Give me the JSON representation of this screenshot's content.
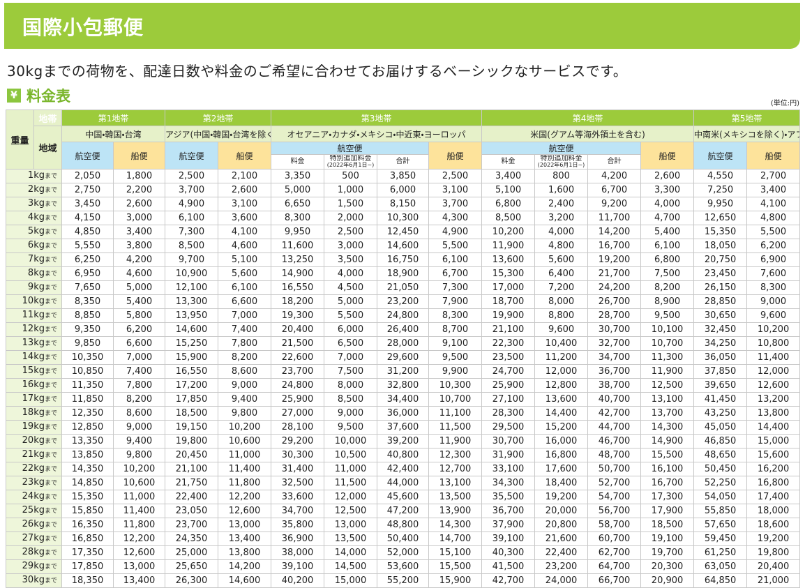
{
  "header": {
    "title": "国際小包郵便"
  },
  "description": "30kgまでの荷物を、配達日数や料金のご希望に合わせてお届けするベーシックなサービスです。",
  "section": {
    "icon": "¥",
    "title": "料金表",
    "unit": "(単位:円)"
  },
  "table": {
    "corner": {
      "weight": "重量",
      "zone": "地帯",
      "region": "地域"
    },
    "zones": [
      {
        "name": "第1地帯",
        "region": "中国・韓国・台湾",
        "air": "航空便",
        "ship": "船便"
      },
      {
        "name": "第2地帯",
        "region": "アジア(中国・韓国・台湾を除く)",
        "air": "航空便",
        "ship": "船便"
      },
      {
        "name": "第3地帯",
        "region": "オセアニア・カナダ・メキシコ・中近東・ヨーロッパ",
        "air": "航空便",
        "fee": "料金",
        "surcharge": "特別追加料金",
        "surcharge_note": "(2022年6月1日~)",
        "total": "合計",
        "ship": "船便"
      },
      {
        "name": "第4地帯",
        "region": "米国(グアム等海外領土を含む)",
        "air": "航空便",
        "fee": "料金",
        "surcharge": "特別追加料金",
        "surcharge_note": "(2022年6月1日~)",
        "total": "合計",
        "ship": "船便"
      },
      {
        "name": "第5地帯",
        "region": "中南米(メキシコを除く)・アフリカ",
        "air": "航空便",
        "ship": "船便"
      }
    ],
    "rows": [
      {
        "weight": "1kg",
        "suffix": "まで",
        "values": [
          "2,050",
          "1,800",
          "2,500",
          "2,100",
          "3,350",
          "500",
          "3,850",
          "2,500",
          "3,400",
          "800",
          "4,200",
          "2,600",
          "4,550",
          "2,700"
        ]
      },
      {
        "weight": "2kg",
        "suffix": "まで",
        "values": [
          "2,750",
          "2,200",
          "3,700",
          "2,600",
          "5,000",
          "1,000",
          "6,000",
          "3,100",
          "5,100",
          "1,600",
          "6,700",
          "3,300",
          "7,250",
          "3,400"
        ]
      },
      {
        "weight": "3kg",
        "suffix": "まで",
        "values": [
          "3,450",
          "2,600",
          "4,900",
          "3,100",
          "6,650",
          "1,500",
          "8,150",
          "3,700",
          "6,800",
          "2,400",
          "9,200",
          "4,000",
          "9,950",
          "4,100"
        ]
      },
      {
        "weight": "4kg",
        "suffix": "まで",
        "values": [
          "4,150",
          "3,000",
          "6,100",
          "3,600",
          "8,300",
          "2,000",
          "10,300",
          "4,300",
          "8,500",
          "3,200",
          "11,700",
          "4,700",
          "12,650",
          "4,800"
        ]
      },
      {
        "weight": "5kg",
        "suffix": "まで",
        "values": [
          "4,850",
          "3,400",
          "7,300",
          "4,100",
          "9,950",
          "2,500",
          "12,450",
          "4,900",
          "10,200",
          "4,000",
          "14,200",
          "5,400",
          "15,350",
          "5,500"
        ]
      },
      {
        "weight": "6kg",
        "suffix": "まで",
        "values": [
          "5,550",
          "3,800",
          "8,500",
          "4,600",
          "11,600",
          "3,000",
          "14,600",
          "5,500",
          "11,900",
          "4,800",
          "16,700",
          "6,100",
          "18,050",
          "6,200"
        ]
      },
      {
        "weight": "7kg",
        "suffix": "まで",
        "values": [
          "6,250",
          "4,200",
          "9,700",
          "5,100",
          "13,250",
          "3,500",
          "16,750",
          "6,100",
          "13,600",
          "5,600",
          "19,200",
          "6,800",
          "20,750",
          "6,900"
        ]
      },
      {
        "weight": "8kg",
        "suffix": "まで",
        "values": [
          "6,950",
          "4,600",
          "10,900",
          "5,600",
          "14,900",
          "4,000",
          "18,900",
          "6,700",
          "15,300",
          "6,400",
          "21,700",
          "7,500",
          "23,450",
          "7,600"
        ]
      },
      {
        "weight": "9kg",
        "suffix": "まで",
        "values": [
          "7,650",
          "5,000",
          "12,100",
          "6,100",
          "16,550",
          "4,500",
          "21,050",
          "7,300",
          "17,000",
          "7,200",
          "24,200",
          "8,200",
          "26,150",
          "8,300"
        ]
      },
      {
        "weight": "10kg",
        "suffix": "まで",
        "values": [
          "8,350",
          "5,400",
          "13,300",
          "6,600",
          "18,200",
          "5,000",
          "23,200",
          "7,900",
          "18,700",
          "8,000",
          "26,700",
          "8,900",
          "28,850",
          "9,000"
        ]
      },
      {
        "weight": "11kg",
        "suffix": "まで",
        "values": [
          "8,850",
          "5,800",
          "13,950",
          "7,000",
          "19,300",
          "5,500",
          "24,800",
          "8,300",
          "19,900",
          "8,800",
          "28,700",
          "9,500",
          "30,650",
          "9,600"
        ]
      },
      {
        "weight": "12kg",
        "suffix": "まで",
        "values": [
          "9,350",
          "6,200",
          "14,600",
          "7,400",
          "20,400",
          "6,000",
          "26,400",
          "8,700",
          "21,100",
          "9,600",
          "30,700",
          "10,100",
          "32,450",
          "10,200"
        ]
      },
      {
        "weight": "13kg",
        "suffix": "まで",
        "values": [
          "9,850",
          "6,600",
          "15,250",
          "7,800",
          "21,500",
          "6,500",
          "28,000",
          "9,100",
          "22,300",
          "10,400",
          "32,700",
          "10,700",
          "34,250",
          "10,800"
        ]
      },
      {
        "weight": "14kg",
        "suffix": "まで",
        "values": [
          "10,350",
          "7,000",
          "15,900",
          "8,200",
          "22,600",
          "7,000",
          "29,600",
          "9,500",
          "23,500",
          "11,200",
          "34,700",
          "11,300",
          "36,050",
          "11,400"
        ]
      },
      {
        "weight": "15kg",
        "suffix": "まで",
        "values": [
          "10,850",
          "7,400",
          "16,550",
          "8,600",
          "23,700",
          "7,500",
          "31,200",
          "9,900",
          "24,700",
          "12,000",
          "36,700",
          "11,900",
          "37,850",
          "12,000"
        ]
      },
      {
        "weight": "16kg",
        "suffix": "まで",
        "values": [
          "11,350",
          "7,800",
          "17,200",
          "9,000",
          "24,800",
          "8,000",
          "32,800",
          "10,300",
          "25,900",
          "12,800",
          "38,700",
          "12,500",
          "39,650",
          "12,600"
        ]
      },
      {
        "weight": "17kg",
        "suffix": "まで",
        "values": [
          "11,850",
          "8,200",
          "17,850",
          "9,400",
          "25,900",
          "8,500",
          "34,400",
          "10,700",
          "27,100",
          "13,600",
          "40,700",
          "13,100",
          "41,450",
          "13,200"
        ]
      },
      {
        "weight": "18kg",
        "suffix": "まで",
        "values": [
          "12,350",
          "8,600",
          "18,500",
          "9,800",
          "27,000",
          "9,000",
          "36,000",
          "11,100",
          "28,300",
          "14,400",
          "42,700",
          "13,700",
          "43,250",
          "13,800"
        ]
      },
      {
        "weight": "19kg",
        "suffix": "まで",
        "values": [
          "12,850",
          "9,000",
          "19,150",
          "10,200",
          "28,100",
          "9,500",
          "37,600",
          "11,500",
          "29,500",
          "15,200",
          "44,700",
          "14,300",
          "45,050",
          "14,400"
        ]
      },
      {
        "weight": "20kg",
        "suffix": "まで",
        "values": [
          "13,350",
          "9,400",
          "19,800",
          "10,600",
          "29,200",
          "10,000",
          "39,200",
          "11,900",
          "30,700",
          "16,000",
          "46,700",
          "14,900",
          "46,850",
          "15,000"
        ]
      },
      {
        "weight": "21kg",
        "suffix": "まで",
        "values": [
          "13,850",
          "9,800",
          "20,450",
          "11,000",
          "30,300",
          "10,500",
          "40,800",
          "12,300",
          "31,900",
          "16,800",
          "48,700",
          "15,500",
          "48,650",
          "15,600"
        ]
      },
      {
        "weight": "22kg",
        "suffix": "まで",
        "values": [
          "14,350",
          "10,200",
          "21,100",
          "11,400",
          "31,400",
          "11,000",
          "42,400",
          "12,700",
          "33,100",
          "17,600",
          "50,700",
          "16,100",
          "50,450",
          "16,200"
        ]
      },
      {
        "weight": "23kg",
        "suffix": "まで",
        "values": [
          "14,850",
          "10,600",
          "21,750",
          "11,800",
          "32,500",
          "11,500",
          "44,000",
          "13,100",
          "34,300",
          "18,400",
          "52,700",
          "16,700",
          "52,250",
          "16,800"
        ]
      },
      {
        "weight": "24kg",
        "suffix": "まで",
        "values": [
          "15,350",
          "11,000",
          "22,400",
          "12,200",
          "33,600",
          "12,000",
          "45,600",
          "13,500",
          "35,500",
          "19,200",
          "54,700",
          "17,300",
          "54,050",
          "17,400"
        ]
      },
      {
        "weight": "25kg",
        "suffix": "まで",
        "values": [
          "15,850",
          "11,400",
          "23,050",
          "12,600",
          "34,700",
          "12,500",
          "47,200",
          "13,900",
          "36,700",
          "20,000",
          "56,700",
          "17,900",
          "55,850",
          "18,000"
        ]
      },
      {
        "weight": "26kg",
        "suffix": "まで",
        "values": [
          "16,350",
          "11,800",
          "23,700",
          "13,000",
          "35,800",
          "13,000",
          "48,800",
          "14,300",
          "37,900",
          "20,800",
          "58,700",
          "18,500",
          "57,650",
          "18,600"
        ]
      },
      {
        "weight": "27kg",
        "suffix": "まで",
        "values": [
          "16,850",
          "12,200",
          "24,350",
          "13,400",
          "36,900",
          "13,500",
          "50,400",
          "14,700",
          "39,100",
          "21,600",
          "60,700",
          "19,100",
          "59,450",
          "19,200"
        ]
      },
      {
        "weight": "28kg",
        "suffix": "まで",
        "values": [
          "17,350",
          "12,600",
          "25,000",
          "13,800",
          "38,000",
          "14,000",
          "52,000",
          "15,100",
          "40,300",
          "22,400",
          "62,700",
          "19,700",
          "61,250",
          "19,800"
        ]
      },
      {
        "weight": "29kg",
        "suffix": "まで",
        "values": [
          "17,850",
          "13,000",
          "25,650",
          "14,200",
          "39,100",
          "14,500",
          "53,600",
          "15,500",
          "41,500",
          "23,200",
          "64,700",
          "20,300",
          "63,050",
          "20,400"
        ]
      },
      {
        "weight": "30kg",
        "suffix": "まで",
        "values": [
          "18,350",
          "13,400",
          "26,300",
          "14,600",
          "40,200",
          "15,000",
          "55,200",
          "15,900",
          "42,700",
          "24,000",
          "66,700",
          "20,900",
          "64,850",
          "21,000"
        ]
      }
    ]
  }
}
